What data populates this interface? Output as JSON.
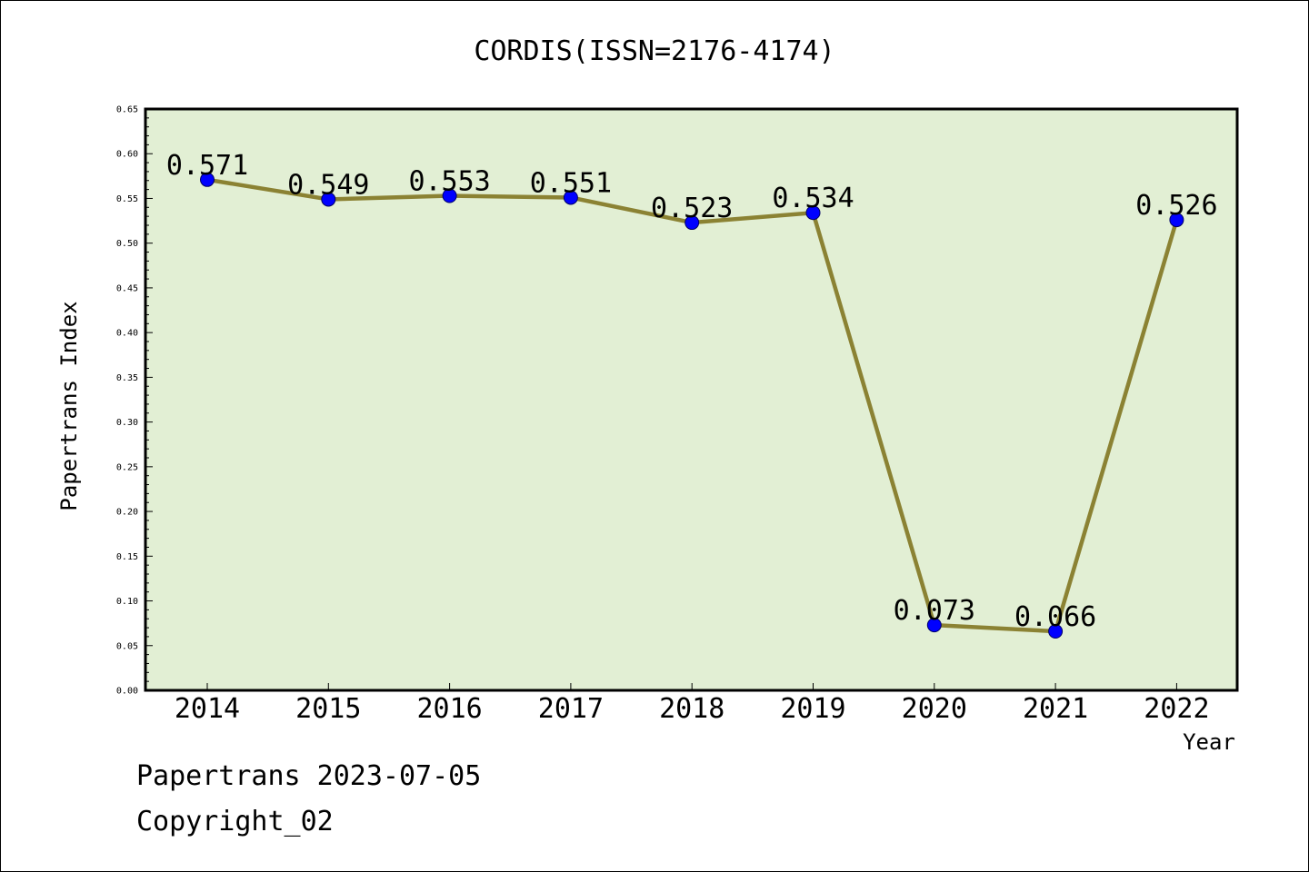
{
  "chart_data": {
    "type": "line",
    "title": "CORDIS(ISSN=2176-4174)",
    "xlabel": "Year",
    "ylabel": "Papertrans Index",
    "categories": [
      "2014",
      "2015",
      "2016",
      "2017",
      "2018",
      "2019",
      "2020",
      "2021",
      "2022"
    ],
    "series": [
      {
        "values": [
          0.571,
          0.549,
          0.553,
          0.551,
          0.523,
          0.534,
          0.073,
          0.066,
          0.526
        ],
        "data_labels": [
          "0.571",
          "0.549",
          "0.553",
          "0.551",
          "0.523",
          "0.534",
          "0.073",
          "0.066",
          "0.526"
        ]
      }
    ],
    "ylim": [
      0,
      0.65
    ],
    "yticks": [
      "0.00",
      "0.05",
      "0.10",
      "0.15",
      "0.20",
      "0.25",
      "0.30",
      "0.35",
      "0.40",
      "0.45",
      "0.50",
      "0.55",
      "0.60",
      "0.65"
    ],
    "grid": false,
    "legend": "none",
    "colors": {
      "plot_background": "#e2efd4",
      "line": "#8b8233",
      "marker": "#0000ff"
    }
  },
  "footer": {
    "line1": "Papertrans 2023-07-05",
    "line2": "Copyright_02"
  }
}
